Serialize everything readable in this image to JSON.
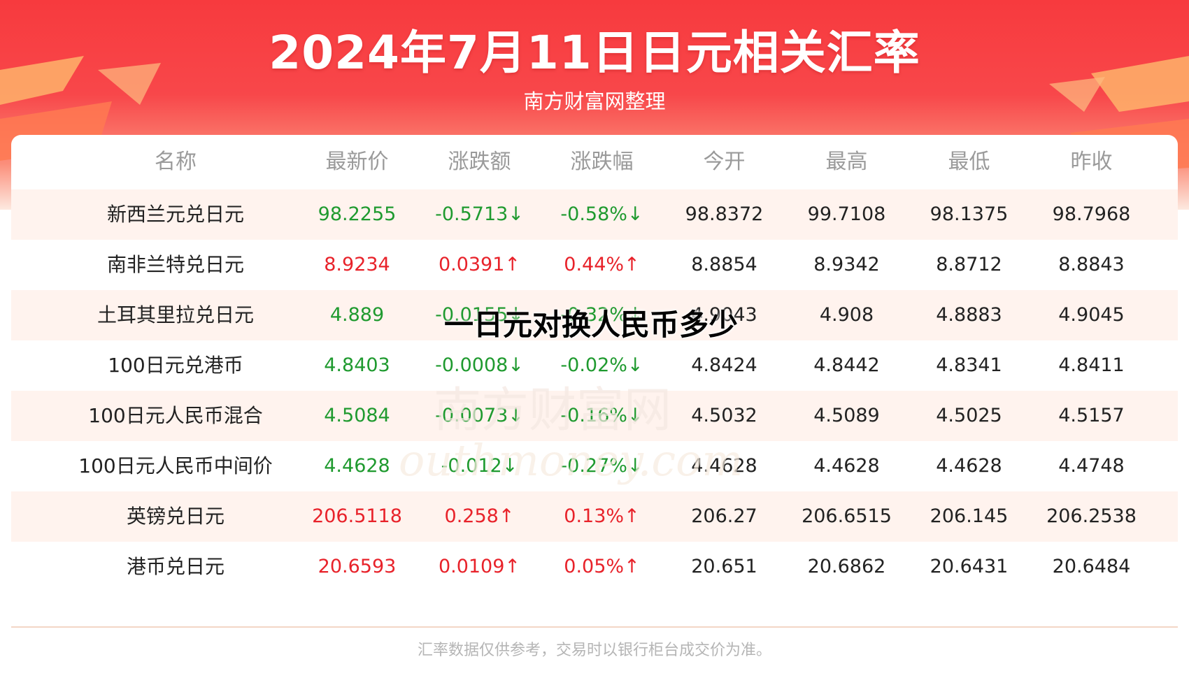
{
  "header": {
    "title": "2024年7月11日日元相关汇率",
    "subtitle": "南方财富网整理"
  },
  "overlay_caption": "一日元对换人民币多少",
  "table": {
    "columns": [
      "名称",
      "最新价",
      "涨跌额",
      "涨跌幅",
      "今开",
      "最高",
      "最低",
      "昨收"
    ],
    "rows": [
      {
        "name": "新西兰元兑日元",
        "latest": "98.2255",
        "change": "-0.5713↓",
        "pct": "-0.58%↓",
        "open": "98.8372",
        "high": "99.7108",
        "low": "98.1375",
        "prev": "98.7968",
        "trend": "down"
      },
      {
        "name": "南非兰特兑日元",
        "latest": "8.9234",
        "change": "0.0391↑",
        "pct": "0.44%↑",
        "open": "8.8854",
        "high": "8.9342",
        "low": "8.8712",
        "prev": "8.8843",
        "trend": "up"
      },
      {
        "name": "土耳其里拉兑日元",
        "latest": "4.889",
        "change": "-0.0155↓",
        "pct": "-0.32%↓",
        "open": "4.9043",
        "high": "4.908",
        "low": "4.8883",
        "prev": "4.9045",
        "trend": "down"
      },
      {
        "name": "100日元兑港币",
        "latest": "4.8403",
        "change": "-0.0008↓",
        "pct": "-0.02%↓",
        "open": "4.8424",
        "high": "4.8442",
        "low": "4.8341",
        "prev": "4.8411",
        "trend": "down"
      },
      {
        "name": "100日元人民币混合",
        "latest": "4.5084",
        "change": "-0.0073↓",
        "pct": "-0.16%↓",
        "open": "4.5032",
        "high": "4.5089",
        "low": "4.5025",
        "prev": "4.5157",
        "trend": "down"
      },
      {
        "name": "100日元人民币中间价",
        "latest": "4.4628",
        "change": "-0.012↓",
        "pct": "-0.27%↓",
        "open": "4.4628",
        "high": "4.4628",
        "low": "4.4628",
        "prev": "4.4748",
        "trend": "down"
      },
      {
        "name": "英镑兑日元",
        "latest": "206.5118",
        "change": "0.258↑",
        "pct": "0.13%↑",
        "open": "206.27",
        "high": "206.6515",
        "low": "206.145",
        "prev": "206.2538",
        "trend": "up"
      },
      {
        "name": "港币兑日元",
        "latest": "20.6593",
        "change": "0.0109↑",
        "pct": "0.05%↑",
        "open": "20.651",
        "high": "20.6862",
        "low": "20.6431",
        "prev": "20.6484",
        "trend": "up"
      }
    ]
  },
  "watermark": {
    "line1": "南方财富网",
    "line2": "outhmoney.com"
  },
  "footer": {
    "note": "汇率数据仅供参考，交易时以银行柜台成交价为准。"
  },
  "colors": {
    "up": "#e8222a",
    "down": "#1f9a2f",
    "banner": "#f73a3e",
    "row_shade": "#fff3ee"
  }
}
